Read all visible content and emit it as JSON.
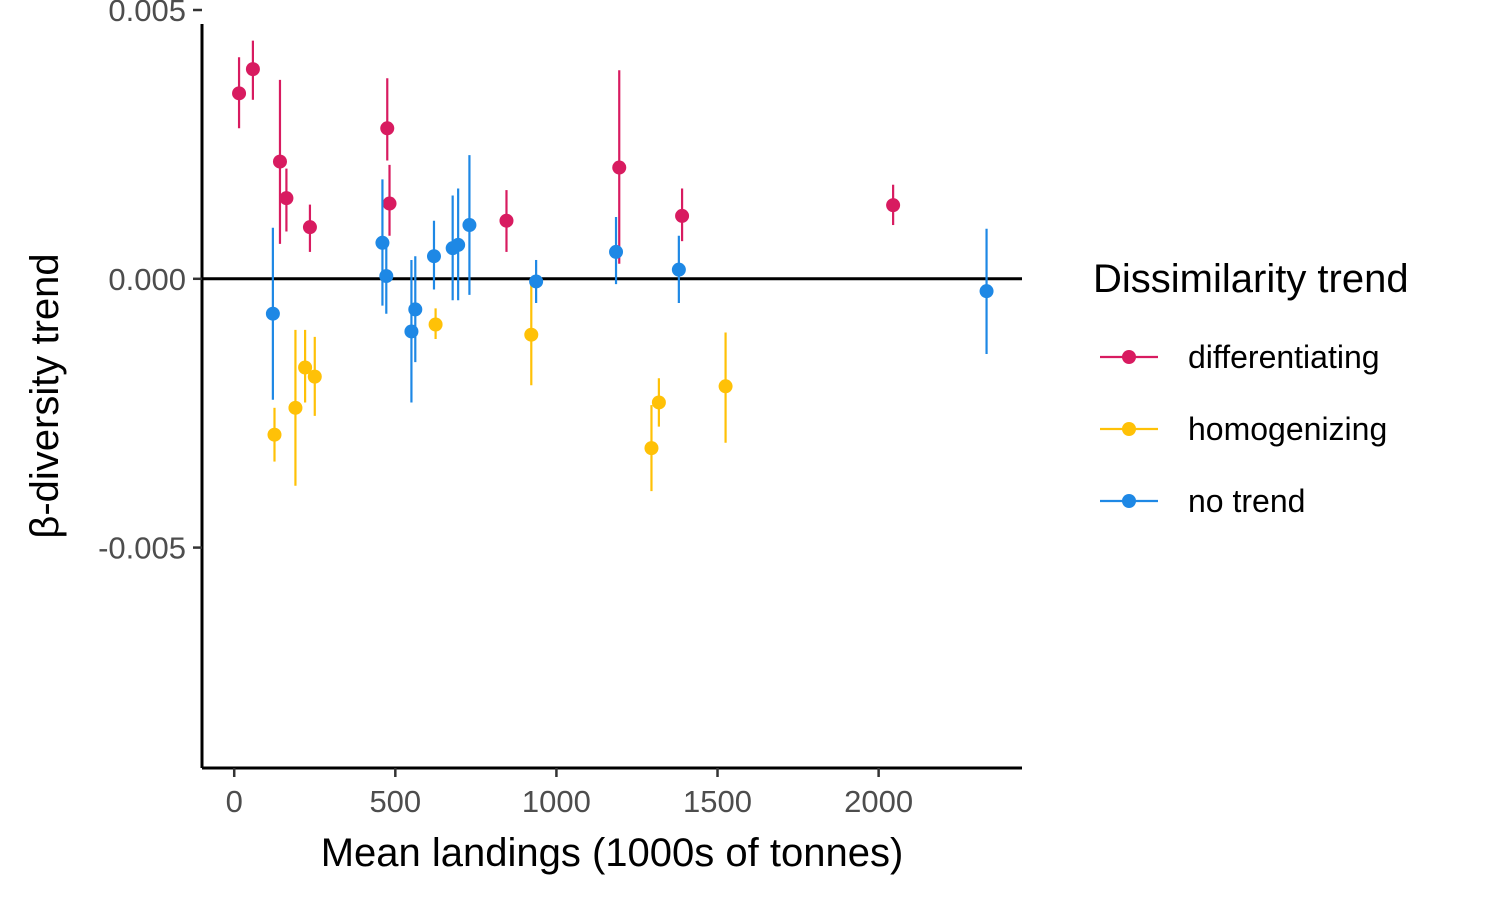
{
  "chart_data": {
    "type": "scatter",
    "title": "",
    "xlabel": "Mean landings (1000s of tonnes)",
    "ylabel": "β-diversity trend",
    "xlim": [
      -100,
      2445
    ],
    "ylim": [
      -0.0091,
      0.005
    ],
    "x_ticks": [
      0,
      500,
      1000,
      1500,
      2000
    ],
    "x_tick_labels": [
      "0",
      "500",
      "1000",
      "1500",
      "2000"
    ],
    "y_ticks": [
      0.005,
      0.0,
      -0.005
    ],
    "y_tick_labels": [
      "0.005",
      "0.000",
      "-0.005"
    ],
    "reference_line": 0,
    "grid": false,
    "legend": {
      "title": "Dissimilarity trend",
      "placement": "right",
      "entries": [
        "differentiating",
        "homogenizing",
        "no trend"
      ]
    },
    "series": [
      {
        "name": "differentiating",
        "color": "#d81b60",
        "points": [
          {
            "x": 15,
            "y": 0.00345,
            "lo": 0.0028,
            "hi": 0.00412
          },
          {
            "x": 58,
            "y": 0.0039,
            "lo": 0.00333,
            "hi": 0.00443
          },
          {
            "x": 142,
            "y": 0.00218,
            "lo": 0.00065,
            "hi": 0.0037
          },
          {
            "x": 162,
            "y": 0.0015,
            "lo": 0.00088,
            "hi": 0.00205
          },
          {
            "x": 235,
            "y": 0.00096,
            "lo": 0.0005,
            "hi": 0.00138
          },
          {
            "x": 475,
            "y": 0.0028,
            "lo": 0.0022,
            "hi": 0.00373
          },
          {
            "x": 482,
            "y": 0.0014,
            "lo": 0.0008,
            "hi": 0.00212
          },
          {
            "x": 845,
            "y": 0.00108,
            "lo": 0.0005,
            "hi": 0.00165
          },
          {
            "x": 1195,
            "y": 0.00207,
            "lo": 0.00028,
            "hi": 0.00388
          },
          {
            "x": 1390,
            "y": 0.00117,
            "lo": 0.0007,
            "hi": 0.00168
          },
          {
            "x": 2045,
            "y": 0.00137,
            "lo": 0.001,
            "hi": 0.00175
          }
        ]
      },
      {
        "name": "homogenizing",
        "color": "#ffc107",
        "points": [
          {
            "x": 125,
            "y": -0.0029,
            "lo": -0.0034,
            "hi": -0.0024
          },
          {
            "x": 190,
            "y": -0.0024,
            "lo": -0.00385,
            "hi": -0.00095
          },
          {
            "x": 220,
            "y": -0.00165,
            "lo": -0.0023,
            "hi": -0.00095
          },
          {
            "x": 250,
            "y": -0.00182,
            "lo": -0.00255,
            "hi": -0.00108
          },
          {
            "x": 625,
            "y": -0.00085,
            "lo": -0.00112,
            "hi": -0.00055
          },
          {
            "x": 922,
            "y": -0.00104,
            "lo": -0.00198,
            "hi": -5e-05
          },
          {
            "x": 1295,
            "y": -0.00315,
            "lo": -0.00395,
            "hi": -0.00235
          },
          {
            "x": 1318,
            "y": -0.0023,
            "lo": -0.00275,
            "hi": -0.00185
          },
          {
            "x": 1525,
            "y": -0.002,
            "lo": -0.00305,
            "hi": -0.001
          }
        ]
      },
      {
        "name": "no trend",
        "color": "#1e88e5",
        "points": [
          {
            "x": 120,
            "y": -0.00065,
            "lo": -0.00225,
            "hi": 0.00095
          },
          {
            "x": 460,
            "y": 0.00067,
            "lo": -0.0005,
            "hi": 0.00185
          },
          {
            "x": 472,
            "y": 5e-05,
            "lo": -0.00065,
            "hi": 0.00075
          },
          {
            "x": 550,
            "y": -0.00098,
            "lo": -0.0023,
            "hi": 0.00035
          },
          {
            "x": 562,
            "y": -0.00057,
            "lo": -0.00155,
            "hi": 0.00042
          },
          {
            "x": 620,
            "y": 0.00042,
            "lo": -0.0002,
            "hi": 0.00108
          },
          {
            "x": 678,
            "y": 0.00057,
            "lo": -0.0004,
            "hi": 0.00155
          },
          {
            "x": 695,
            "y": 0.00063,
            "lo": -0.0004,
            "hi": 0.00168
          },
          {
            "x": 730,
            "y": 0.001,
            "lo": -0.0003,
            "hi": 0.0023
          },
          {
            "x": 937,
            "y": -5e-05,
            "lo": -0.00045,
            "hi": 0.00035
          },
          {
            "x": 1185,
            "y": 0.0005,
            "lo": -0.0001,
            "hi": 0.00115
          },
          {
            "x": 1380,
            "y": 0.00017,
            "lo": -0.00045,
            "hi": 0.0008
          },
          {
            "x": 2335,
            "y": -0.00023,
            "lo": -0.0014,
            "hi": 0.00093
          }
        ]
      }
    ]
  }
}
